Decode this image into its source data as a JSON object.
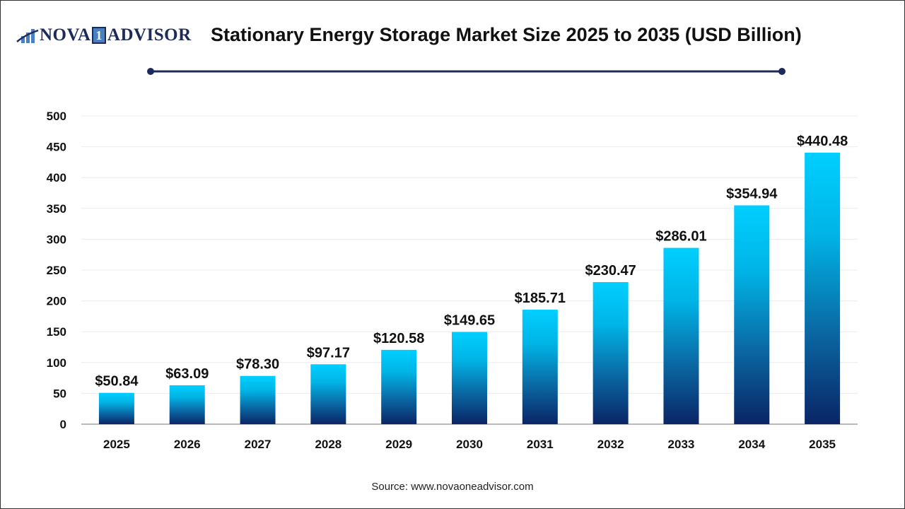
{
  "header": {
    "logo_text": "NOVA 1 ADVISOR",
    "logo_prefix": "NOVA",
    "logo_one": "1",
    "logo_suffix": "ADVISOR",
    "title": "Stationary Energy Storage Market Size 2025 to 2035 (USD Billion)"
  },
  "footer": {
    "source": "Source: www.novaoneadvisor.com"
  },
  "colors": {
    "bar_top": "#00cfff",
    "bar_bottom": "#0a2566",
    "title_line": "#1d2a5c"
  },
  "chart_data": {
    "type": "bar",
    "title": "Stationary Energy Storage Market Size 2025 to 2035 (USD Billion)",
    "categories": [
      "2025",
      "2026",
      "2027",
      "2028",
      "2029",
      "2030",
      "2031",
      "2032",
      "2033",
      "2034",
      "2035"
    ],
    "values": [
      50.84,
      63.09,
      78.3,
      97.17,
      120.58,
      149.65,
      185.71,
      230.47,
      286.01,
      354.94,
      440.48
    ],
    "data_labels": [
      "$50.84",
      "$63.09",
      "$78.30",
      "$97.17",
      "$120.58",
      "$149.65",
      "$185.71",
      "$230.47",
      "$286.01",
      "$354.94",
      "$440.48"
    ],
    "yticks": [
      "0",
      "50",
      "100",
      "150",
      "200",
      "250",
      "300",
      "350",
      "400",
      "450",
      "500"
    ],
    "ylim": [
      0,
      500
    ],
    "grid": true,
    "xlabel": "",
    "ylabel": ""
  }
}
